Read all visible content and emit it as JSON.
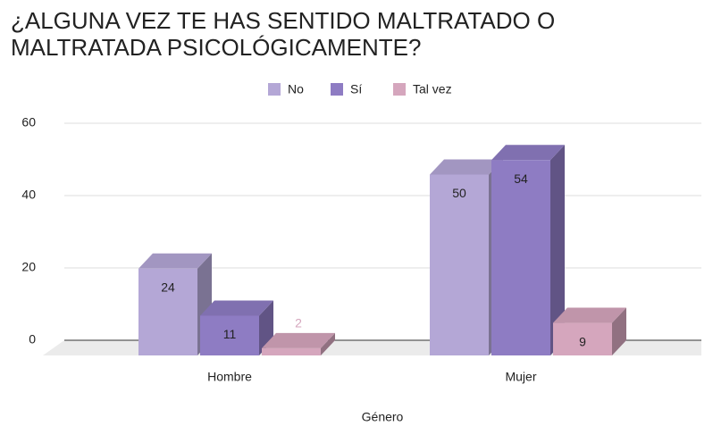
{
  "chart_data": {
    "type": "bar3d",
    "title": "¿ALGUNA VEZ TE HAS SENTIDO MALTRATADO O MALTRATADA PSICOLÓGICAMENTE?",
    "x_label": "Género",
    "categories": [
      "Hombre",
      "Mujer"
    ],
    "series": [
      {
        "name": "No",
        "color": "#b4a7d6",
        "values": [
          24,
          50
        ]
      },
      {
        "name": "Sí",
        "color": "#8e7cc3",
        "values": [
          11,
          54
        ]
      },
      {
        "name": "Tal vez",
        "color": "#d5a6bd",
        "values": [
          2,
          9
        ]
      }
    ],
    "ylim": [
      0,
      60
    ],
    "yticks": [
      0,
      20,
      40,
      60
    ],
    "grid": true,
    "legend": "top"
  }
}
